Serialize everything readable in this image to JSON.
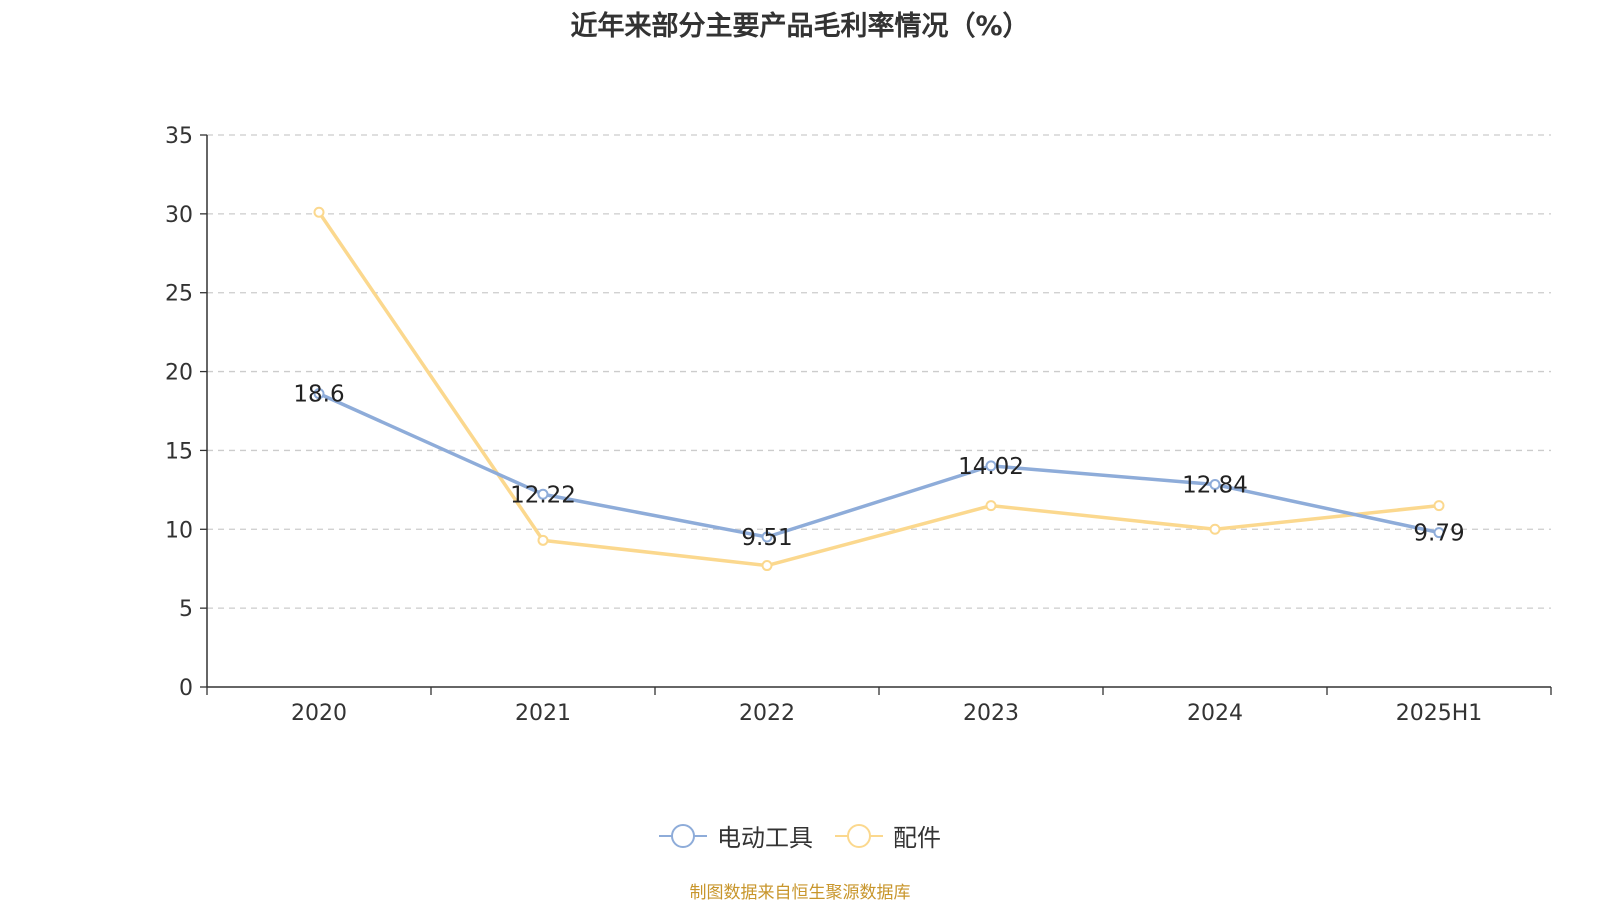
{
  "chart_data": {
    "type": "line",
    "title": "近年来部分主要产品毛利率情况（%）",
    "categories": [
      "2020",
      "2021",
      "2022",
      "2023",
      "2024",
      "2025H1"
    ],
    "series": [
      {
        "name": "电动工具",
        "color": "#8eacd9",
        "values": [
          18.6,
          12.22,
          9.51,
          14.02,
          12.84,
          9.79
        ],
        "data_labels": [
          "18.6",
          "12.22",
          "9.51",
          "14.02",
          "12.84",
          "9.79"
        ]
      },
      {
        "name": "配件",
        "color": "#fbd88e",
        "values": [
          30.1,
          9.3,
          7.7,
          11.5,
          10.0,
          11.5
        ]
      }
    ],
    "ylim": [
      0,
      35
    ],
    "yticks": [
      "0",
      "5",
      "10",
      "15",
      "20",
      "25",
      "30",
      "35"
    ],
    "grid": "horizontal dashed",
    "legend_position": "bottom"
  },
  "source_note": "制图数据来自恒生聚源数据库"
}
